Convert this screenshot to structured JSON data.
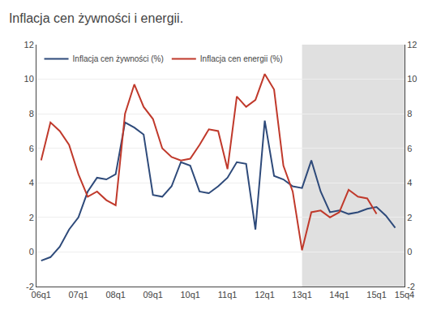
{
  "chart_data": {
    "type": "line",
    "title": "Inflacja cen żywności i energii.",
    "categories": [
      "06q1",
      null,
      null,
      null,
      "07q1",
      null,
      null,
      null,
      "08q1",
      null,
      null,
      null,
      "09q1",
      null,
      null,
      null,
      "10q1",
      null,
      null,
      null,
      "11q1",
      null,
      null,
      null,
      "12q1",
      null,
      null,
      null,
      "13q1",
      null,
      null,
      null,
      "14q1",
      null,
      null,
      null,
      "15q1",
      null,
      null,
      "15q4"
    ],
    "series": [
      {
        "name": "Inflacja cen żywności (%)",
        "color": "#2E4A7A",
        "values": [
          -0.5,
          -0.3,
          0.3,
          1.3,
          2.0,
          3.5,
          4.3,
          4.2,
          4.5,
          7.5,
          7.2,
          6.8,
          3.3,
          3.2,
          3.8,
          5.2,
          5.0,
          3.5,
          3.4,
          3.8,
          4.3,
          5.2,
          5.1,
          1.3,
          7.6,
          4.4,
          4.2,
          3.8,
          3.7,
          5.3,
          3.5,
          2.3,
          2.4,
          2.2,
          2.3,
          2.5,
          2.6,
          2.1,
          1.4,
          null
        ]
      },
      {
        "name": "Inflacja cen energii (%)",
        "color": "#C0392B",
        "values": [
          5.3,
          7.5,
          7.0,
          6.2,
          4.5,
          3.2,
          3.5,
          3.0,
          2.7,
          8.0,
          9.7,
          8.4,
          7.7,
          6.0,
          5.5,
          5.3,
          5.4,
          6.2,
          7.1,
          7.0,
          4.8,
          9.0,
          8.4,
          8.8,
          10.3,
          9.4,
          5.0,
          3.5,
          0.1,
          2.3,
          2.4,
          2.0,
          2.3,
          3.6,
          3.2,
          3.1,
          2.2,
          null,
          null,
          null
        ]
      }
    ],
    "shade": {
      "from": "13q1",
      "to": "15q4",
      "color": "#E0E0E0"
    },
    "ylim": [
      -2,
      12
    ],
    "yticks": [
      -2,
      0,
      2,
      4,
      6,
      8,
      10,
      12
    ],
    "y2lim": [
      -2,
      12
    ],
    "y2ticks": [
      -2,
      0,
      2,
      4,
      6,
      8,
      10,
      12
    ],
    "grid": true,
    "legend": "upper left"
  }
}
